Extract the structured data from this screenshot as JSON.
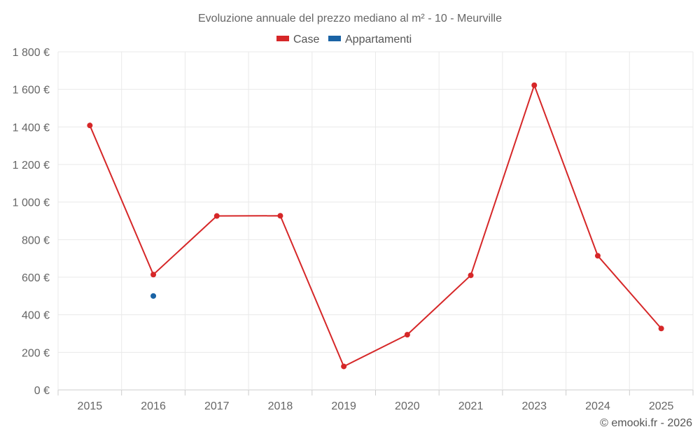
{
  "chart_data": {
    "type": "line",
    "title": "Evoluzione annuale del prezzo mediano al m² - 10 - Meurville",
    "categories": [
      "2015",
      "2016",
      "2017",
      "2018",
      "2019",
      "2020",
      "2021",
      "2023",
      "2024",
      "2025"
    ],
    "series": [
      {
        "name": "Case",
        "color": "#d62728",
        "values": [
          1408,
          614,
          926,
          927,
          125,
          294,
          610,
          1622,
          714,
          327
        ]
      },
      {
        "name": "Appartamenti",
        "color": "#1a63a5",
        "values": [
          null,
          500,
          null,
          null,
          null,
          null,
          null,
          null,
          null,
          null
        ]
      }
    ],
    "ylim": [
      0,
      1800
    ],
    "yticks": [
      0,
      200,
      400,
      600,
      800,
      1000,
      1200,
      1400,
      1600,
      1800
    ],
    "ytick_labels": [
      "0 €",
      "200 €",
      "400 €",
      "600 €",
      "800 €",
      "1 000 €",
      "1 200 €",
      "1 400 €",
      "1 600 €",
      "1 800 €"
    ],
    "xlabel": "",
    "ylabel": "",
    "grid": true,
    "legend_position": "top-center"
  },
  "credit": "© emooki.fr - 2026"
}
